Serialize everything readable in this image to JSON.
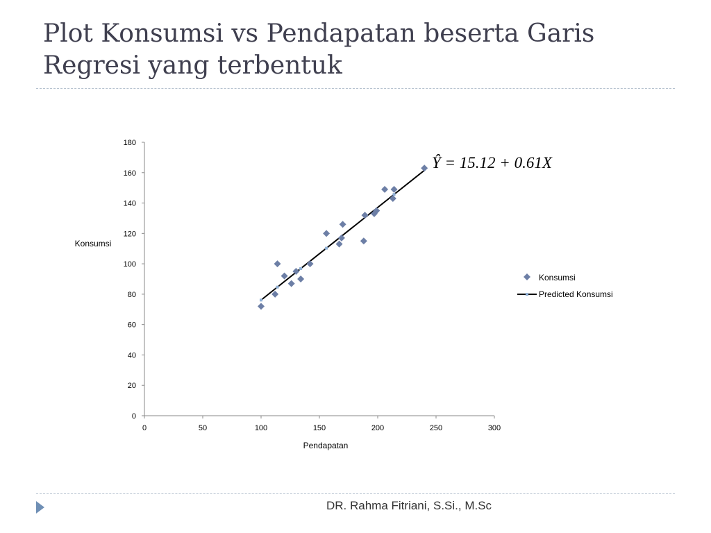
{
  "slide": {
    "title": "Plot Konsumsi vs Pendapatan beserta Garis Regresi yang terbentuk",
    "footer": "DR. Rahma Fitriani, S.Si., M.Sc"
  },
  "chart_data": {
    "type": "scatter",
    "xlabel": "Pendapatan",
    "ylabel": "Konsumsi",
    "xlim": [
      0,
      300
    ],
    "ylim": [
      0,
      180
    ],
    "xticks": [
      0,
      50,
      100,
      150,
      200,
      250,
      300
    ],
    "yticks": [
      0,
      20,
      40,
      60,
      80,
      100,
      120,
      140,
      160,
      180
    ],
    "grid": false,
    "legend_position": "right",
    "equation": "Ŷ = 15.12 + 0.61X",
    "colors": {
      "points": "#6d7fa6",
      "line": "#000000",
      "line_marker": "#8fb0d6"
    },
    "series": [
      {
        "name": "Konsumsi",
        "kind": "points",
        "x": [
          100,
          112,
          114,
          120,
          126,
          130,
          134,
          142,
          156,
          167,
          169,
          170,
          188,
          189,
          197,
          199,
          206,
          213,
          214,
          240
        ],
        "y": [
          72,
          80,
          100,
          92,
          87,
          95,
          90,
          100,
          120,
          113,
          117,
          126,
          115,
          132,
          133,
          135,
          149,
          143,
          149,
          163
        ]
      },
      {
        "name": "Predicted Konsumsi",
        "kind": "line",
        "x": [
          100,
          240
        ],
        "y": [
          76.12,
          161.52
        ],
        "marker_x": [
          100,
          114,
          134,
          156,
          214
        ]
      }
    ]
  }
}
